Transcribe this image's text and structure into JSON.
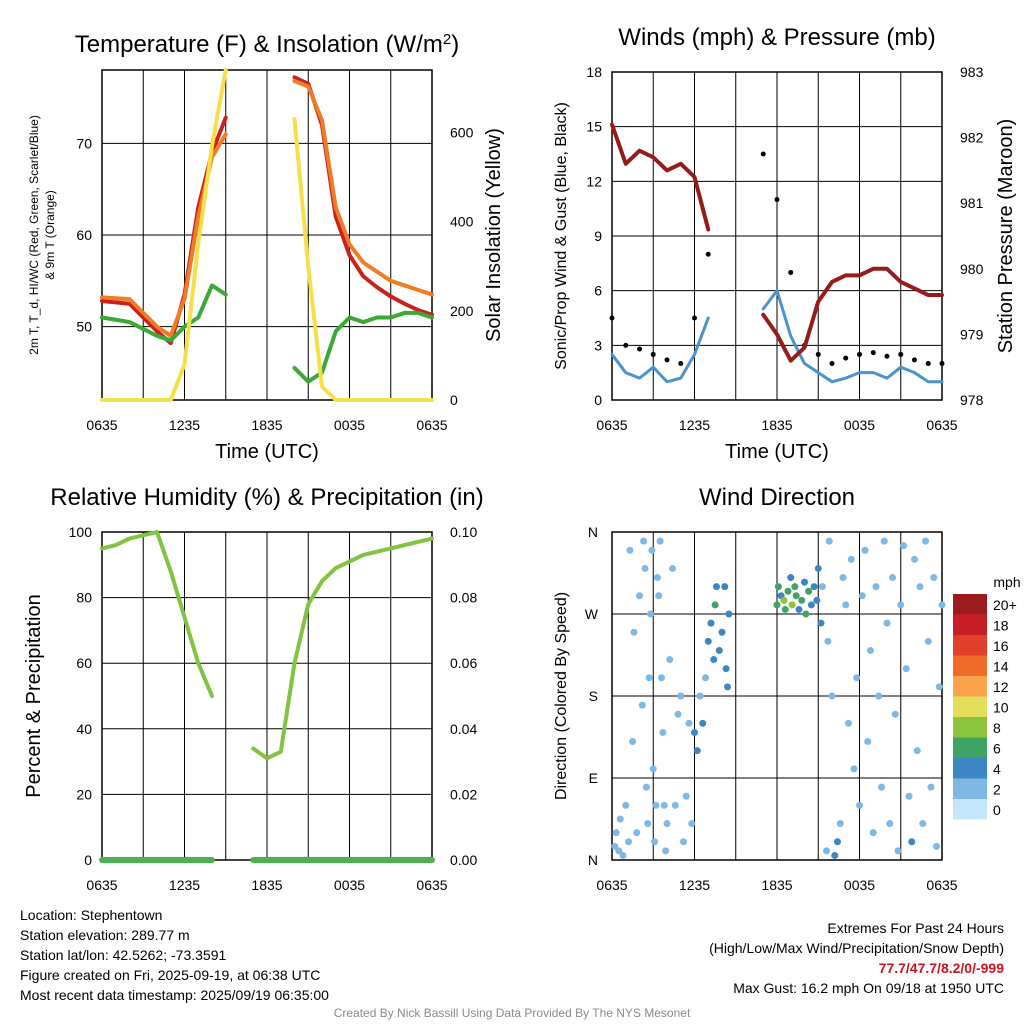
{
  "info": {
    "location": "Location: Stephentown",
    "elevation": "Station elevation: 289.77 m",
    "latlon": "Station lat/lon: 42.5262; -73.3591",
    "created": "Figure created on Fri, 2025-09-19, at 06:38 UTC",
    "recent": "Most recent data timestamp: 2025/09/19 06:35:00",
    "extremes_title": "Extremes For Past 24 Hours",
    "extremes_sub": "(High/Low/Max Wind/Precipitation/Snow Depth)",
    "extremes_values": "77.7/47.7/8.2/0/-999",
    "max_gust": "Max Gust: 16.2 mph On 09/18 at 1950 UTC",
    "credit": "Created By Nick Bassill Using Data Provided By The NYS Mesonet"
  },
  "chart_data": [
    {
      "type": "line",
      "title": "Temperature (F) & Insolation (W/m²)",
      "xlabel": "Time (UTC)",
      "ylabel_left": "2m T, Td, HI/WC (Red, Green, Scarlet/Blue) & 9m T (Orange)",
      "ylabel_right": "Solar Insolation (Yellow)",
      "x_ticks": [
        "0635",
        "1235",
        "1835",
        "0035",
        "0635"
      ],
      "ylim": [
        42,
        78
      ],
      "y_ticks": [
        50,
        60,
        70
      ],
      "y2lim": [
        0,
        740
      ],
      "y2_ticks": [
        0,
        200,
        400,
        600
      ],
      "x_hours": [
        0,
        2,
        4,
        5,
        6,
        7,
        8,
        9,
        10,
        11,
        12,
        13,
        14,
        15,
        16,
        17,
        18,
        19,
        20,
        21,
        22,
        23,
        24
      ],
      "series": [
        {
          "name": "2m T",
          "color": "#cc1f1f",
          "axis": "left",
          "values": [
            52.8,
            52.5,
            49.5,
            48.2,
            53.5,
            63,
            69,
            72.8,
            null,
            null,
            null,
            null,
            77.2,
            76.5,
            72,
            62,
            57.8,
            55.5,
            54.3,
            53.3,
            52.5,
            51.8,
            51.3
          ]
        },
        {
          "name": "9m T",
          "color": "#f07c25",
          "axis": "left",
          "values": [
            53.2,
            53,
            50,
            49,
            53,
            62,
            68.5,
            71,
            null,
            null,
            null,
            null,
            76.8,
            76.2,
            72.5,
            63,
            59,
            57,
            56,
            55,
            54.5,
            54,
            53.5
          ]
        },
        {
          "name": "Td",
          "color": "#3aa935",
          "axis": "left",
          "values": [
            51,
            50.5,
            49,
            48.5,
            50,
            51,
            54.5,
            53.5,
            null,
            null,
            null,
            null,
            45.5,
            44,
            45,
            49.5,
            51,
            50.5,
            51,
            51,
            51.5,
            51.5,
            51
          ]
        },
        {
          "name": "Solar Insolation",
          "color": "#f5e04a",
          "axis": "right",
          "values": [
            0,
            0,
            0,
            0,
            80,
            350,
            570,
            740,
            null,
            null,
            null,
            null,
            630,
            300,
            30,
            0,
            0,
            0,
            0,
            0,
            0,
            0,
            0
          ]
        }
      ]
    },
    {
      "type": "line",
      "title": "Winds (mph) & Pressure (mb)",
      "xlabel": "Time (UTC)",
      "ylabel_left": "Sonic/Prop Wind & Gust (Blue, Black)",
      "ylabel_right": "Station Pressure (Maroon)",
      "x_ticks": [
        "0635",
        "1235",
        "1835",
        "0035",
        "0635"
      ],
      "ylim": [
        0,
        18
      ],
      "y_ticks": [
        0,
        3,
        6,
        9,
        12,
        15,
        18
      ],
      "y2lim": [
        978,
        983
      ],
      "y2_ticks": [
        978,
        979,
        980,
        981,
        982,
        983
      ],
      "x_hours": [
        0,
        1,
        2,
        3,
        4,
        5,
        6,
        7,
        8,
        9,
        10,
        11,
        12,
        13,
        14,
        15,
        16,
        17,
        18,
        19,
        20,
        21,
        22,
        23,
        24
      ],
      "series": [
        {
          "name": "Wind",
          "color": "#4a93cc",
          "axis": "left",
          "values": [
            2.5,
            1.5,
            1.2,
            1.8,
            1.0,
            1.2,
            2.5,
            4.5,
            null,
            null,
            null,
            5.0,
            6.0,
            3.5,
            2.0,
            1.5,
            1.0,
            1.2,
            1.5,
            1.5,
            1.2,
            1.8,
            1.5,
            1.0,
            1.0
          ]
        },
        {
          "name": "Gust",
          "color": "#000000",
          "axis": "left",
          "values": [
            4.5,
            3.0,
            2.8,
            2.5,
            2.2,
            2.0,
            4.5,
            8.0,
            null,
            null,
            null,
            13.5,
            11.0,
            7.0,
            3.0,
            2.5,
            2.0,
            2.3,
            2.5,
            2.6,
            2.4,
            2.5,
            2.2,
            2.0,
            2.0
          ]
        },
        {
          "name": "Station Pressure",
          "color": "#961b1b",
          "axis": "right",
          "values": [
            982.2,
            981.6,
            981.8,
            981.7,
            981.5,
            981.6,
            981.4,
            980.6,
            null,
            null,
            null,
            979.3,
            979.0,
            978.6,
            978.8,
            979.5,
            979.8,
            979.9,
            979.9,
            980.0,
            980.0,
            979.8,
            979.7,
            979.6,
            979.6
          ]
        }
      ]
    },
    {
      "type": "line",
      "title": "Relative Humidity (%) & Precipitation (in)",
      "xlabel": "",
      "ylabel_left": "Percent & Precipitation",
      "x_ticks": [
        "0635",
        "1235",
        "1835",
        "0035",
        "0635"
      ],
      "ylim": [
        0,
        100
      ],
      "y_ticks": [
        0,
        20,
        40,
        60,
        80,
        100
      ],
      "y2lim": [
        0,
        0.1
      ],
      "y2_ticks": [
        "0.00",
        "0.02",
        "0.04",
        "0.06",
        "0.08",
        "0.10"
      ],
      "x_hours": [
        0,
        1,
        2,
        3,
        4,
        5,
        6,
        7,
        8,
        9,
        10,
        11,
        12,
        13,
        14,
        15,
        16,
        17,
        18,
        19,
        20,
        21,
        22,
        23,
        24
      ],
      "series": [
        {
          "name": "Relative Humidity",
          "color": "#82c341",
          "axis": "left",
          "values": [
            95,
            96,
            98,
            99,
            100,
            88,
            74,
            60,
            50,
            null,
            null,
            34,
            31,
            33,
            60,
            78,
            85,
            89,
            91,
            93,
            94,
            95,
            96,
            97,
            98
          ]
        },
        {
          "name": "Precipitation",
          "color": "#4caf50",
          "axis": "right",
          "values": [
            0,
            0,
            0,
            0,
            0,
            0,
            0,
            0,
            0,
            null,
            null,
            0,
            0,
            0,
            0,
            0,
            0,
            0,
            0,
            0,
            0,
            0,
            0,
            0,
            0
          ]
        }
      ]
    },
    {
      "type": "scatter",
      "title": "Wind Direction",
      "ylabel_left": "Direction (Colored By Speed)",
      "x_ticks": [
        "0635",
        "1235",
        "1835",
        "0035",
        "0635"
      ],
      "y_ticks": [
        "N",
        "E",
        "S",
        "W",
        "N"
      ],
      "ylim": [
        0,
        360
      ],
      "legend_title": "mph",
      "legend_labels": [
        "20+",
        "18",
        "16",
        "14",
        "12",
        "10",
        "8",
        "6",
        "4",
        "2",
        "0"
      ],
      "legend_colors": [
        "#9c1b1f",
        "#c71f25",
        "#e0402c",
        "#f06a2a",
        "#f9a34a",
        "#e4df5a",
        "#8cc43e",
        "#3fa363",
        "#3c86c4",
        "#7fb8e4",
        "#c4e6f8"
      ],
      "points": [
        [
          0.2,
          15,
          1
        ],
        [
          0.3,
          30,
          2
        ],
        [
          0.5,
          10,
          1
        ],
        [
          0.6,
          45,
          1
        ],
        [
          0.8,
          5,
          2
        ],
        [
          1.0,
          60,
          1
        ],
        [
          1.2,
          20,
          1
        ],
        [
          1.3,
          340,
          1
        ],
        [
          1.5,
          130,
          1
        ],
        [
          1.6,
          250,
          1
        ],
        [
          1.8,
          30,
          1
        ],
        [
          2.0,
          290,
          1
        ],
        [
          2.2,
          170,
          1
        ],
        [
          2.3,
          350,
          1
        ],
        [
          2.4,
          320,
          1
        ],
        [
          2.5,
          80,
          1
        ],
        [
          2.6,
          40,
          1
        ],
        [
          2.7,
          200,
          1
        ],
        [
          2.8,
          270,
          1
        ],
        [
          2.9,
          340,
          1
        ],
        [
          3.0,
          100,
          1
        ],
        [
          3.1,
          20,
          1
        ],
        [
          3.2,
          60,
          1
        ],
        [
          3.3,
          310,
          1
        ],
        [
          3.4,
          290,
          1
        ],
        [
          3.5,
          350,
          1
        ],
        [
          3.6,
          200,
          1
        ],
        [
          3.7,
          140,
          1
        ],
        [
          3.8,
          60,
          1
        ],
        [
          3.9,
          10,
          1
        ],
        [
          4.0,
          40,
          1
        ],
        [
          4.2,
          220,
          1
        ],
        [
          4.4,
          320,
          1
        ],
        [
          4.6,
          60,
          1
        ],
        [
          4.8,
          160,
          1
        ],
        [
          5.0,
          180,
          1
        ],
        [
          5.2,
          20,
          1
        ],
        [
          5.4,
          70,
          1
        ],
        [
          5.6,
          150,
          1
        ],
        [
          5.8,
          40,
          1
        ],
        [
          6.0,
          140,
          3
        ],
        [
          6.2,
          120,
          3
        ],
        [
          6.4,
          180,
          2
        ],
        [
          6.6,
          150,
          3
        ],
        [
          6.8,
          200,
          2
        ],
        [
          7.0,
          240,
          3
        ],
        [
          7.2,
          260,
          3
        ],
        [
          7.4,
          220,
          3
        ],
        [
          7.5,
          280,
          6
        ],
        [
          7.6,
          300,
          3
        ],
        [
          7.8,
          230,
          3
        ],
        [
          8.0,
          250,
          4
        ],
        [
          8.2,
          300,
          3
        ],
        [
          8.3,
          210,
          3
        ],
        [
          8.4,
          190,
          3
        ],
        [
          8.5,
          270,
          3
        ],
        [
          12.0,
          280,
          6
        ],
        [
          12.1,
          300,
          5
        ],
        [
          12.3,
          290,
          4
        ],
        [
          12.5,
          285,
          7
        ],
        [
          12.6,
          275,
          6
        ],
        [
          12.8,
          295,
          5
        ],
        [
          13.0,
          310,
          4
        ],
        [
          13.1,
          280,
          7
        ],
        [
          13.3,
          300,
          6
        ],
        [
          13.4,
          290,
          5
        ],
        [
          13.6,
          275,
          4
        ],
        [
          13.8,
          285,
          6
        ],
        [
          14.0,
          305,
          4
        ],
        [
          14.1,
          270,
          6
        ],
        [
          14.3,
          295,
          5
        ],
        [
          14.5,
          280,
          4
        ],
        [
          14.7,
          300,
          4
        ],
        [
          14.9,
          285,
          3
        ],
        [
          15.0,
          320,
          3
        ],
        [
          15.2,
          260,
          3
        ],
        [
          15.3,
          300,
          1
        ],
        [
          15.6,
          10,
          1
        ],
        [
          15.7,
          240,
          1
        ],
        [
          15.8,
          350,
          1
        ],
        [
          16.0,
          180,
          1
        ],
        [
          16.2,
          5,
          3
        ],
        [
          16.4,
          20,
          3
        ],
        [
          16.6,
          40,
          2
        ],
        [
          16.8,
          310,
          1
        ],
        [
          17.0,
          280,
          1
        ],
        [
          17.2,
          150,
          1
        ],
        [
          17.4,
          330,
          1
        ],
        [
          17.6,
          100,
          1
        ],
        [
          17.8,
          200,
          1
        ],
        [
          18.0,
          60,
          1
        ],
        [
          18.2,
          290,
          1
        ],
        [
          18.4,
          340,
          1
        ],
        [
          18.6,
          130,
          1
        ],
        [
          18.8,
          230,
          1
        ],
        [
          19.0,
          30,
          2
        ],
        [
          19.2,
          300,
          1
        ],
        [
          19.4,
          180,
          1
        ],
        [
          19.6,
          80,
          1
        ],
        [
          19.8,
          350,
          1
        ],
        [
          20.0,
          260,
          1
        ],
        [
          20.2,
          40,
          1
        ],
        [
          20.4,
          310,
          1
        ],
        [
          20.6,
          160,
          1
        ],
        [
          20.8,
          10,
          2
        ],
        [
          21.0,
          280,
          1
        ],
        [
          21.2,
          345,
          2
        ],
        [
          21.4,
          210,
          1
        ],
        [
          21.6,
          70,
          1
        ],
        [
          21.8,
          20,
          3
        ],
        [
          22.0,
          330,
          1
        ],
        [
          22.2,
          120,
          1
        ],
        [
          22.4,
          300,
          1
        ],
        [
          22.6,
          40,
          1
        ],
        [
          22.8,
          350,
          2
        ],
        [
          23.0,
          240,
          1
        ],
        [
          23.2,
          80,
          1
        ],
        [
          23.4,
          310,
          1
        ],
        [
          23.6,
          15,
          2
        ],
        [
          23.8,
          190,
          1
        ],
        [
          24.0,
          280,
          1
        ]
      ]
    }
  ]
}
